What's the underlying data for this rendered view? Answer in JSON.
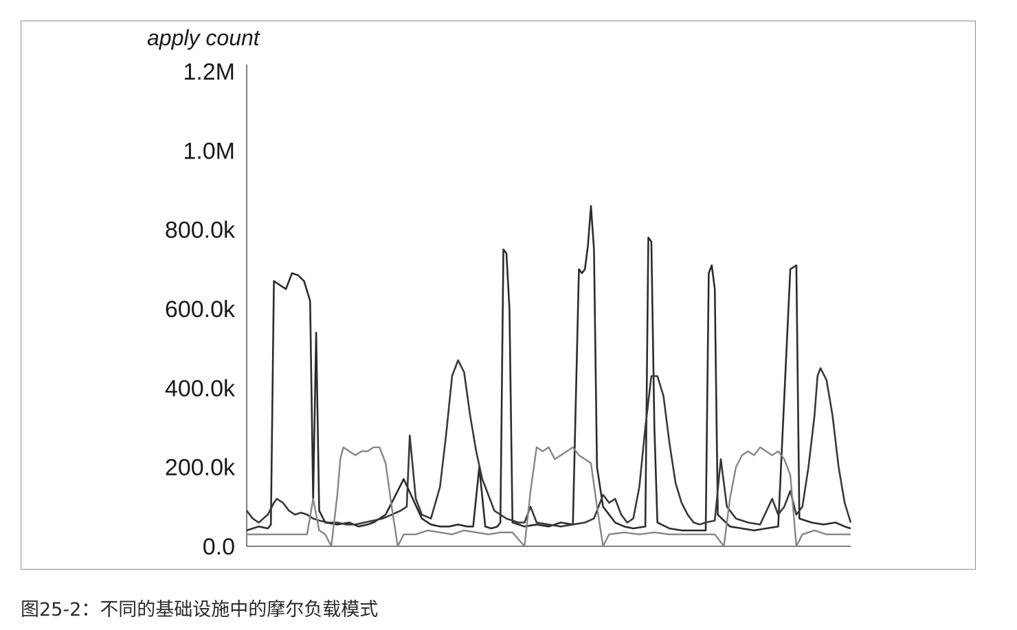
{
  "figure": {
    "caption": "图25-2：不同的基础设施中的摩尔负载模式"
  },
  "chart_data": {
    "type": "line",
    "title": "",
    "xlabel": "",
    "ylabel": "apply count",
    "ylim": [
      0,
      1200000
    ],
    "yticks": [
      {
        "value": 0,
        "label": "0.0"
      },
      {
        "value": 200000,
        "label": "200.0k"
      },
      {
        "value": 400000,
        "label": "400.0k"
      },
      {
        "value": 600000,
        "label": "600.0k"
      },
      {
        "value": 800000,
        "label": "800.0k"
      },
      {
        "value": 1000000,
        "label": "1.0M"
      },
      {
        "value": 1200000,
        "label": "1.2M"
      }
    ],
    "xlim": [
      0,
      200
    ],
    "grid": false,
    "legend": "none",
    "series": [
      {
        "color": "#2b2b2b",
        "points": [
          [
            0,
            40000
          ],
          [
            4,
            50000
          ],
          [
            7,
            45000
          ],
          [
            8,
            55000
          ],
          [
            9,
            670000
          ],
          [
            11,
            660000
          ],
          [
            13,
            650000
          ],
          [
            15,
            690000
          ],
          [
            17,
            685000
          ],
          [
            19,
            670000
          ],
          [
            21,
            620000
          ],
          [
            22,
            120000
          ],
          [
            23,
            540000
          ],
          [
            24,
            90000
          ],
          [
            26,
            60000
          ],
          [
            30,
            55000
          ],
          [
            34,
            60000
          ],
          [
            37,
            50000
          ],
          [
            40,
            55000
          ],
          [
            42,
            60000
          ],
          [
            44,
            70000
          ],
          [
            46,
            80000
          ],
          [
            48,
            110000
          ],
          [
            50,
            140000
          ],
          [
            52,
            170000
          ],
          [
            55,
            120000
          ],
          [
            58,
            70000
          ],
          [
            61,
            55000
          ],
          [
            64,
            50000
          ],
          [
            67,
            50000
          ],
          [
            70,
            55000
          ],
          [
            73,
            50000
          ],
          [
            75,
            50000
          ],
          [
            77,
            200000
          ],
          [
            79,
            50000
          ],
          [
            81,
            45000
          ],
          [
            83,
            50000
          ],
          [
            84,
            60000
          ],
          [
            85,
            750000
          ],
          [
            86,
            740000
          ],
          [
            87,
            600000
          ],
          [
            88,
            60000
          ],
          [
            92,
            50000
          ],
          [
            96,
            55000
          ],
          [
            100,
            50000
          ],
          [
            104,
            60000
          ],
          [
            108,
            55000
          ],
          [
            110,
            700000
          ],
          [
            111,
            690000
          ],
          [
            112,
            700000
          ],
          [
            113,
            760000
          ],
          [
            114,
            860000
          ],
          [
            115,
            750000
          ],
          [
            116,
            200000
          ],
          [
            118,
            100000
          ],
          [
            122,
            60000
          ],
          [
            125,
            50000
          ],
          [
            128,
            45000
          ],
          [
            132,
            50000
          ],
          [
            133,
            780000
          ],
          [
            134,
            770000
          ],
          [
            135,
            300000
          ],
          [
            136,
            60000
          ],
          [
            140,
            45000
          ],
          [
            144,
            40000
          ],
          [
            148,
            40000
          ],
          [
            150,
            40000
          ],
          [
            152,
            40000
          ],
          [
            153,
            690000
          ],
          [
            154,
            710000
          ],
          [
            155,
            650000
          ],
          [
            156,
            80000
          ],
          [
            160,
            50000
          ],
          [
            164,
            45000
          ],
          [
            168,
            40000
          ],
          [
            172,
            45000
          ],
          [
            176,
            50000
          ],
          [
            180,
            700000
          ],
          [
            182,
            710000
          ],
          [
            183,
            70000
          ],
          [
            187,
            60000
          ],
          [
            191,
            55000
          ],
          [
            195,
            60000
          ],
          [
            198,
            50000
          ],
          [
            200,
            45000
          ]
        ]
      },
      {
        "color": "#383838",
        "points": [
          [
            0,
            90000
          ],
          [
            2,
            70000
          ],
          [
            4,
            60000
          ],
          [
            7,
            80000
          ],
          [
            9,
            110000
          ],
          [
            10,
            120000
          ],
          [
            12,
            110000
          ],
          [
            14,
            90000
          ],
          [
            16,
            80000
          ],
          [
            18,
            85000
          ],
          [
            20,
            80000
          ],
          [
            22,
            70000
          ],
          [
            24,
            65000
          ],
          [
            27,
            60000
          ],
          [
            30,
            60000
          ],
          [
            33,
            55000
          ],
          [
            36,
            55000
          ],
          [
            39,
            60000
          ],
          [
            42,
            65000
          ],
          [
            45,
            70000
          ],
          [
            48,
            80000
          ],
          [
            51,
            90000
          ],
          [
            53,
            100000
          ],
          [
            54,
            280000
          ],
          [
            56,
            120000
          ],
          [
            58,
            80000
          ],
          [
            61,
            70000
          ],
          [
            64,
            150000
          ],
          [
            66,
            280000
          ],
          [
            68,
            430000
          ],
          [
            70,
            470000
          ],
          [
            72,
            440000
          ],
          [
            74,
            330000
          ],
          [
            76,
            240000
          ],
          [
            78,
            170000
          ],
          [
            80,
            130000
          ],
          [
            82,
            90000
          ],
          [
            84,
            80000
          ],
          [
            86,
            70000
          ],
          [
            88,
            65000
          ],
          [
            90,
            60000
          ],
          [
            92,
            60000
          ],
          [
            94,
            100000
          ],
          [
            96,
            60000
          ],
          [
            100,
            55000
          ],
          [
            104,
            50000
          ],
          [
            108,
            55000
          ],
          [
            112,
            60000
          ],
          [
            115,
            70000
          ],
          [
            118,
            130000
          ],
          [
            120,
            110000
          ],
          [
            122,
            120000
          ],
          [
            124,
            80000
          ],
          [
            126,
            60000
          ],
          [
            128,
            70000
          ],
          [
            130,
            150000
          ],
          [
            132,
            300000
          ],
          [
            134,
            430000
          ],
          [
            136,
            430000
          ],
          [
            138,
            380000
          ],
          [
            140,
            260000
          ],
          [
            142,
            160000
          ],
          [
            144,
            110000
          ],
          [
            146,
            80000
          ],
          [
            148,
            60000
          ],
          [
            150,
            55000
          ],
          [
            152,
            60000
          ],
          [
            155,
            65000
          ],
          [
            157,
            220000
          ],
          [
            159,
            100000
          ],
          [
            162,
            70000
          ],
          [
            166,
            60000
          ],
          [
            170,
            55000
          ],
          [
            174,
            120000
          ],
          [
            176,
            80000
          ],
          [
            178,
            100000
          ],
          [
            180,
            140000
          ],
          [
            182,
            80000
          ],
          [
            184,
            100000
          ],
          [
            186,
            200000
          ],
          [
            188,
            330000
          ],
          [
            189,
            430000
          ],
          [
            190,
            450000
          ],
          [
            192,
            420000
          ],
          [
            194,
            330000
          ],
          [
            196,
            200000
          ],
          [
            198,
            110000
          ],
          [
            200,
            60000
          ]
        ]
      },
      {
        "color": "#858585",
        "points": [
          [
            0,
            30000
          ],
          [
            20,
            30000
          ],
          [
            22,
            120000
          ],
          [
            24,
            40000
          ],
          [
            26,
            30000
          ],
          [
            28,
            0
          ],
          [
            30,
            130000
          ],
          [
            31,
            220000
          ],
          [
            32,
            250000
          ],
          [
            34,
            240000
          ],
          [
            36,
            230000
          ],
          [
            38,
            240000
          ],
          [
            40,
            240000
          ],
          [
            42,
            250000
          ],
          [
            44,
            250000
          ],
          [
            46,
            210000
          ],
          [
            48,
            100000
          ],
          [
            50,
            0
          ],
          [
            52,
            30000
          ],
          [
            56,
            30000
          ],
          [
            60,
            40000
          ],
          [
            64,
            35000
          ],
          [
            68,
            30000
          ],
          [
            72,
            40000
          ],
          [
            76,
            35000
          ],
          [
            80,
            30000
          ],
          [
            84,
            35000
          ],
          [
            88,
            35000
          ],
          [
            92,
            0
          ],
          [
            94,
            140000
          ],
          [
            96,
            250000
          ],
          [
            98,
            240000
          ],
          [
            100,
            250000
          ],
          [
            102,
            220000
          ],
          [
            104,
            230000
          ],
          [
            106,
            240000
          ],
          [
            108,
            250000
          ],
          [
            110,
            230000
          ],
          [
            112,
            220000
          ],
          [
            114,
            210000
          ],
          [
            116,
            100000
          ],
          [
            118,
            0
          ],
          [
            120,
            30000
          ],
          [
            125,
            35000
          ],
          [
            130,
            30000
          ],
          [
            135,
            35000
          ],
          [
            140,
            30000
          ],
          [
            145,
            30000
          ],
          [
            150,
            30000
          ],
          [
            155,
            30000
          ],
          [
            158,
            0
          ],
          [
            160,
            120000
          ],
          [
            162,
            200000
          ],
          [
            164,
            230000
          ],
          [
            166,
            240000
          ],
          [
            168,
            230000
          ],
          [
            170,
            250000
          ],
          [
            172,
            240000
          ],
          [
            174,
            230000
          ],
          [
            176,
            240000
          ],
          [
            178,
            220000
          ],
          [
            180,
            180000
          ],
          [
            182,
            0
          ],
          [
            184,
            30000
          ],
          [
            188,
            40000
          ],
          [
            192,
            30000
          ],
          [
            196,
            30000
          ],
          [
            200,
            30000
          ]
        ]
      }
    ]
  }
}
